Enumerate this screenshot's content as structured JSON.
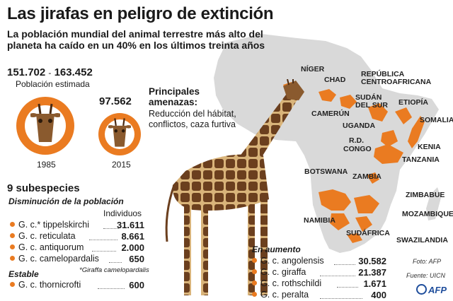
{
  "title": "Las jirafas en peligro de extinción",
  "subtitle": "La población mundial del animal terrestre más alto del planeta ha caído en un 40% en los últimos treinta años",
  "population": {
    "range_low": "151.702",
    "range_sep": "-",
    "range_high": "163.452",
    "estimated_label": "Población estimada",
    "value_2015": "97.562",
    "year_1985": "1985",
    "year_2015": "2015"
  },
  "threats": {
    "heading_line1": "Principales",
    "heading_line2": "amenazas:",
    "body_line1": "Reducción del hábitat,",
    "body_line2": "conflictos, caza furtiva"
  },
  "map_labels": [
    "NÍGER",
    "CHAD",
    "REPÚBLICA",
    "CENTROAFRICANA",
    "SUDÁN",
    "DEL SUR",
    "ETIOPÍA",
    "CAMERÚN",
    "SOMALIA",
    "UGANDA",
    "R.D.",
    "CONGO",
    "KENIA",
    "TANZANIA",
    "BOTSWANA",
    "ZAMBIA",
    "ZIMBABUE",
    "NAMIBIA",
    "MOZAMBIQUE",
    "SUDÁFRICA",
    "SWAZILANDIA"
  ],
  "subspecies": {
    "heading": "9 subespecies",
    "decrease_label": "Disminución de la población",
    "individuals_label": "Individuos",
    "decreasing": [
      {
        "name": "G. c.* tippelskirchi",
        "value": "31.611"
      },
      {
        "name": "G. c. reticulata",
        "value": "8.661"
      },
      {
        "name": "G. c. antiquorum",
        "value": "2.000"
      },
      {
        "name": "G. c. camelopardalis",
        "value": "650"
      }
    ],
    "footnote": "*Giraffa camelopardalis",
    "stable_label": "Estable",
    "stable": [
      {
        "name": "G. c. thornicrofti",
        "value": "600"
      }
    ],
    "increasing_label": "En aumento",
    "increasing": [
      {
        "name": "G. c. angolensis",
        "value": "30.582"
      },
      {
        "name": "G. c. giraffa",
        "value": "21.387"
      },
      {
        "name": "G. c. rothschildi",
        "value": "1.671"
      },
      {
        "name": "G. c. peralta",
        "value": "400"
      }
    ]
  },
  "credits": {
    "photo": "Foto: AFP",
    "source": "Fuente: UICN",
    "logo": "AFP"
  },
  "colors": {
    "accent": "#ea7b21",
    "map": "#d9d9d9",
    "giraffe_patch": "#6b3f1e",
    "giraffe_light": "#d9b47a"
  }
}
